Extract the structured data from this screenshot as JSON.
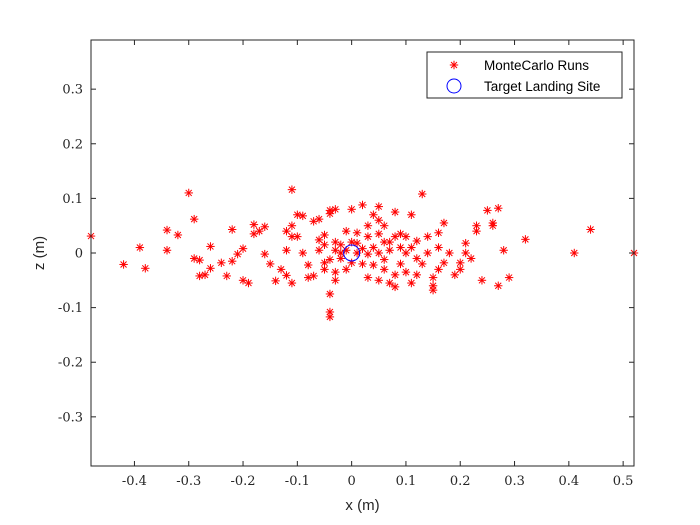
{
  "chart_data": {
    "type": "scatter",
    "xlabel": "x (m)",
    "ylabel": "z (m)",
    "xlim": [
      -0.48,
      0.52
    ],
    "ylim": [
      -0.39,
      0.39
    ],
    "xticks": [
      -0.4,
      -0.3,
      -0.2,
      -0.1,
      0,
      0.1,
      0.2,
      0.3,
      0.4,
      0.5
    ],
    "xtick_labels": [
      "-0.4",
      "-0.3",
      "-0.2",
      "-0.1",
      "0",
      "0.1",
      "0.2",
      "0.3",
      "0.4",
      "0.5"
    ],
    "yticks": [
      -0.3,
      -0.2,
      -0.1,
      0,
      0.1,
      0.2,
      0.3
    ],
    "ytick_labels": [
      "-0.3",
      "-0.2",
      "-0.1",
      "0",
      "0.1",
      "0.2",
      "0.3"
    ],
    "grid": false,
    "legend_position": "top-right",
    "series": [
      {
        "name": "MonteCarlo Runs",
        "marker": "*",
        "color": "#ff0000",
        "points": [
          [
            -0.48,
            0.031
          ],
          [
            -0.42,
            -0.021
          ],
          [
            -0.39,
            0.01
          ],
          [
            -0.38,
            -0.028
          ],
          [
            -0.34,
            0.042
          ],
          [
            -0.34,
            0.005
          ],
          [
            -0.32,
            0.033
          ],
          [
            -0.3,
            0.11
          ],
          [
            -0.29,
            0.062
          ],
          [
            -0.29,
            -0.01
          ],
          [
            -0.28,
            -0.042
          ],
          [
            -0.28,
            -0.013
          ],
          [
            -0.27,
            -0.04
          ],
          [
            -0.26,
            0.012
          ],
          [
            -0.26,
            -0.028
          ],
          [
            -0.24,
            -0.018
          ],
          [
            -0.23,
            -0.042
          ],
          [
            -0.22,
            0.043
          ],
          [
            -0.22,
            -0.015
          ],
          [
            -0.21,
            -0.002
          ],
          [
            -0.2,
            -0.05
          ],
          [
            -0.2,
            0.008
          ],
          [
            -0.19,
            -0.055
          ],
          [
            -0.18,
            0.052
          ],
          [
            -0.18,
            0.035
          ],
          [
            -0.17,
            0.04
          ],
          [
            -0.16,
            -0.002
          ],
          [
            -0.16,
            0.048
          ],
          [
            -0.15,
            -0.02
          ],
          [
            -0.14,
            -0.051
          ],
          [
            -0.13,
            -0.03
          ],
          [
            -0.12,
            0.04
          ],
          [
            -0.12,
            0.005
          ],
          [
            -0.12,
            -0.041
          ],
          [
            -0.11,
            -0.055
          ],
          [
            -0.11,
            0.116
          ],
          [
            -0.11,
            0.05
          ],
          [
            -0.11,
            0.03
          ],
          [
            -0.1,
            0.07
          ],
          [
            -0.1,
            0.03
          ],
          [
            -0.09,
            0.068
          ],
          [
            -0.09,
            0.0
          ],
          [
            -0.08,
            -0.022
          ],
          [
            -0.08,
            -0.045
          ],
          [
            -0.07,
            0.058
          ],
          [
            -0.07,
            -0.042
          ],
          [
            -0.06,
            0.062
          ],
          [
            -0.06,
            0.024
          ],
          [
            -0.06,
            0.005
          ],
          [
            -0.05,
            0.015
          ],
          [
            -0.05,
            -0.018
          ],
          [
            -0.05,
            -0.03
          ],
          [
            -0.05,
            0.033
          ],
          [
            -0.04,
            0.072
          ],
          [
            -0.04,
            0.078
          ],
          [
            -0.04,
            -0.075
          ],
          [
            -0.04,
            -0.012
          ],
          [
            -0.04,
            -0.108
          ],
          [
            -0.04,
            -0.117
          ],
          [
            -0.03,
            0.005
          ],
          [
            -0.03,
            0.02
          ],
          [
            -0.03,
            -0.05
          ],
          [
            -0.03,
            0.08
          ],
          [
            -0.03,
            -0.035
          ],
          [
            -0.02,
            0.0
          ],
          [
            -0.02,
            0.015
          ],
          [
            -0.02,
            -0.01
          ],
          [
            -0.01,
            0.005
          ],
          [
            -0.01,
            -0.03
          ],
          [
            -0.01,
            0.04
          ],
          [
            0.0,
            0.02
          ],
          [
            0.0,
            0.08
          ],
          [
            0.0,
            -0.018
          ],
          [
            0.01,
            0.018
          ],
          [
            0.01,
            0.0
          ],
          [
            0.01,
            0.037
          ],
          [
            0.02,
            0.088
          ],
          [
            0.02,
            0.008
          ],
          [
            0.02,
            -0.02
          ],
          [
            0.03,
            0.05
          ],
          [
            0.03,
            0.03
          ],
          [
            0.03,
            -0.002
          ],
          [
            0.03,
            -0.045
          ],
          [
            0.04,
            0.07
          ],
          [
            0.04,
            0.01
          ],
          [
            0.04,
            -0.022
          ],
          [
            0.05,
            0.06
          ],
          [
            0.05,
            0.035
          ],
          [
            0.05,
            0.0
          ],
          [
            0.05,
            0.085
          ],
          [
            0.05,
            -0.05
          ],
          [
            0.06,
            0.02
          ],
          [
            0.06,
            -0.012
          ],
          [
            0.06,
            -0.03
          ],
          [
            0.06,
            0.05
          ],
          [
            0.07,
            -0.055
          ],
          [
            0.07,
            0.005
          ],
          [
            0.07,
            0.02
          ],
          [
            0.08,
            -0.04
          ],
          [
            0.08,
            0.03
          ],
          [
            0.08,
            -0.062
          ],
          [
            0.08,
            0.075
          ],
          [
            0.09,
            0.01
          ],
          [
            0.09,
            -0.02
          ],
          [
            0.09,
            0.035
          ],
          [
            0.1,
            0.0
          ],
          [
            0.1,
            -0.035
          ],
          [
            0.1,
            0.03
          ],
          [
            0.11,
            -0.055
          ],
          [
            0.11,
            0.07
          ],
          [
            0.11,
            0.01
          ],
          [
            0.12,
            -0.01
          ],
          [
            0.12,
            0.022
          ],
          [
            0.12,
            -0.04
          ],
          [
            0.13,
            0.108
          ],
          [
            0.13,
            -0.02
          ],
          [
            0.14,
            0.0
          ],
          [
            0.14,
            0.03
          ],
          [
            0.15,
            -0.045
          ],
          [
            0.15,
            -0.06
          ],
          [
            0.15,
            -0.068
          ],
          [
            0.16,
            0.037
          ],
          [
            0.16,
            0.01
          ],
          [
            0.16,
            -0.03
          ],
          [
            0.17,
            0.055
          ],
          [
            0.17,
            -0.018
          ],
          [
            0.18,
            0.0
          ],
          [
            0.19,
            -0.04
          ],
          [
            0.2,
            -0.03
          ],
          [
            0.2,
            -0.018
          ],
          [
            0.21,
            0.018
          ],
          [
            0.21,
            0.0
          ],
          [
            0.22,
            -0.01
          ],
          [
            0.23,
            0.05
          ],
          [
            0.23,
            0.04
          ],
          [
            0.24,
            -0.05
          ],
          [
            0.25,
            0.078
          ],
          [
            0.26,
            0.055
          ],
          [
            0.26,
            0.05
          ],
          [
            0.27,
            0.082
          ],
          [
            0.27,
            -0.06
          ],
          [
            0.28,
            0.005
          ],
          [
            0.29,
            -0.045
          ],
          [
            0.32,
            0.025
          ],
          [
            0.41,
            0.0
          ],
          [
            0.44,
            0.043
          ],
          [
            0.52,
            0.0
          ]
        ]
      },
      {
        "name": "Target Landing Site",
        "marker": "o",
        "color": "#0000ff",
        "points": [
          [
            0,
            0
          ]
        ]
      }
    ]
  }
}
